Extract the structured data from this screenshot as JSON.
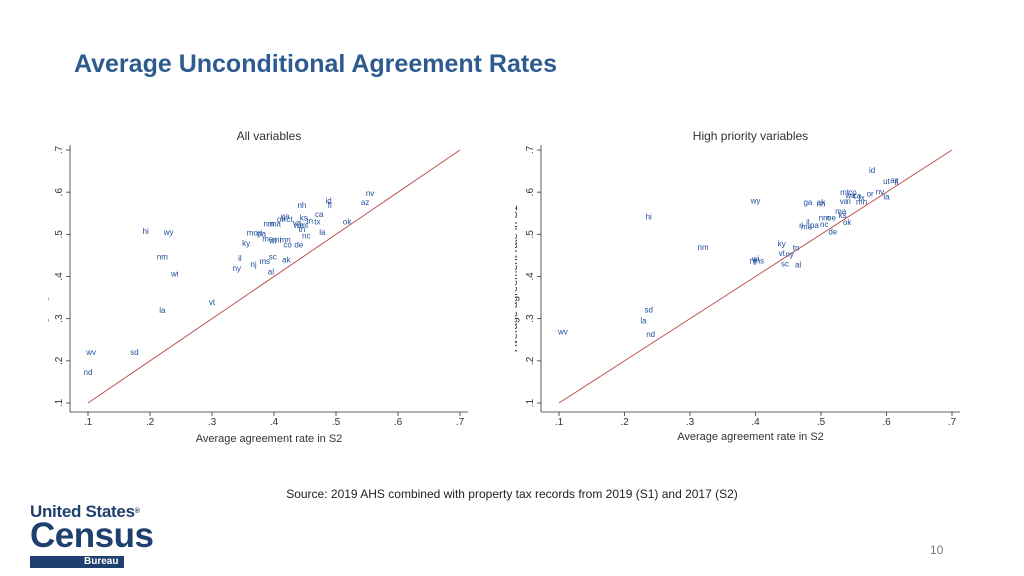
{
  "slide": {
    "title": "Average Unconditional Agreement Rates",
    "source": "Source: 2019 AHS combined with property tax records from 2019 (S1) and 2017 (S2)",
    "page_number": "10"
  },
  "logo": {
    "line1": "United States",
    "registered": "®",
    "line2": "Census",
    "line3": "Bureau"
  },
  "colors": {
    "title": "#2e5b8f",
    "marker": "#1f4e9b",
    "fit_line": "#c0504d",
    "axis": "#333333",
    "logo": "#1f3f6e"
  },
  "chart_data": [
    {
      "type": "scatter",
      "title": "All variables",
      "xlabel": "Average agreement rate in S2",
      "ylabel": "Average agreement rate in S1",
      "xlim": [
        0.1,
        0.7
      ],
      "ylim": [
        0.1,
        0.7
      ],
      "xticks": [
        ".1",
        ".2",
        ".3",
        ".4",
        ".5",
        ".6",
        ".7"
      ],
      "yticks": [
        ".1",
        ".2",
        ".3",
        ".4",
        ".5",
        ".6",
        ".7"
      ],
      "reference_line": [
        [
          0.1,
          0.1
        ],
        [
          0.7,
          0.7
        ]
      ],
      "points": [
        {
          "label": "nv",
          "x": 0.555,
          "y": 0.596
        },
        {
          "label": "id",
          "x": 0.488,
          "y": 0.578
        },
        {
          "label": "az",
          "x": 0.547,
          "y": 0.574
        },
        {
          "label": "nh",
          "x": 0.445,
          "y": 0.567
        },
        {
          "label": "fl",
          "x": 0.49,
          "y": 0.567
        },
        {
          "label": "ca",
          "x": 0.473,
          "y": 0.546
        },
        {
          "label": "ga",
          "x": 0.418,
          "y": 0.541
        },
        {
          "label": "ks",
          "x": 0.448,
          "y": 0.538
        },
        {
          "label": "oh",
          "x": 0.412,
          "y": 0.534
        },
        {
          "label": "ct",
          "x": 0.425,
          "y": 0.534
        },
        {
          "label": "in",
          "x": 0.458,
          "y": 0.531
        },
        {
          "label": "tx",
          "x": 0.47,
          "y": 0.528
        },
        {
          "label": "ok",
          "x": 0.518,
          "y": 0.528
        },
        {
          "label": "va",
          "x": 0.437,
          "y": 0.526
        },
        {
          "label": "nm",
          "x": 0.392,
          "y": 0.523
        },
        {
          "label": "ma",
          "x": 0.402,
          "y": 0.523
        },
        {
          "label": "wa",
          "x": 0.44,
          "y": 0.52
        },
        {
          "label": "mt",
          "x": 0.448,
          "y": 0.52
        },
        {
          "label": "tn",
          "x": 0.445,
          "y": 0.51
        },
        {
          "label": "hi",
          "x": 0.193,
          "y": 0.506
        },
        {
          "label": "la",
          "x": 0.478,
          "y": 0.504
        },
        {
          "label": "wy",
          "x": 0.23,
          "y": 0.503
        },
        {
          "label": "mo",
          "x": 0.365,
          "y": 0.502
        },
        {
          "label": "ri",
          "x": 0.378,
          "y": 0.502
        },
        {
          "label": "pa",
          "x": 0.38,
          "y": 0.5
        },
        {
          "label": "nc",
          "x": 0.452,
          "y": 0.495
        },
        {
          "label": "me",
          "x": 0.39,
          "y": 0.488
        },
        {
          "label": "mi",
          "x": 0.405,
          "y": 0.486
        },
        {
          "label": "mn",
          "x": 0.418,
          "y": 0.486
        },
        {
          "label": "wi",
          "x": 0.398,
          "y": 0.483
        },
        {
          "label": "co",
          "x": 0.422,
          "y": 0.474
        },
        {
          "label": "de",
          "x": 0.44,
          "y": 0.474
        },
        {
          "label": "ky",
          "x": 0.355,
          "y": 0.477
        },
        {
          "label": "sc",
          "x": 0.398,
          "y": 0.445
        },
        {
          "label": "ak",
          "x": 0.42,
          "y": 0.438
        },
        {
          "label": "nm",
          "x": 0.22,
          "y": 0.445
        },
        {
          "label": "il",
          "x": 0.345,
          "y": 0.442
        },
        {
          "label": "ms",
          "x": 0.385,
          "y": 0.435
        },
        {
          "label": "nj",
          "x": 0.367,
          "y": 0.428
        },
        {
          "label": "ny",
          "x": 0.34,
          "y": 0.418
        },
        {
          "label": "al",
          "x": 0.395,
          "y": 0.41
        },
        {
          "label": "wi",
          "x": 0.24,
          "y": 0.405
        },
        {
          "label": "vt",
          "x": 0.3,
          "y": 0.338
        },
        {
          "label": "la",
          "x": 0.22,
          "y": 0.318
        },
        {
          "label": "wv",
          "x": 0.105,
          "y": 0.219
        },
        {
          "label": "sd",
          "x": 0.175,
          "y": 0.219
        },
        {
          "label": "nd",
          "x": 0.1,
          "y": 0.171
        }
      ]
    },
    {
      "type": "scatter",
      "title": "High priority variables",
      "xlabel": "Average agreement rate in S2",
      "ylabel": "Average agreement rate in S1",
      "xlim": [
        0.1,
        0.7
      ],
      "ylim": [
        0.1,
        0.7
      ],
      "xticks": [
        ".1",
        ".2",
        ".3",
        ".4",
        ".5",
        ".6",
        ".7"
      ],
      "yticks": [
        ".1",
        ".2",
        ".3",
        ".4",
        ".5",
        ".6",
        ".7"
      ],
      "reference_line": [
        [
          0.1,
          0.1
        ],
        [
          0.7,
          0.7
        ]
      ],
      "points": [
        {
          "label": "id",
          "x": 0.578,
          "y": 0.65
        },
        {
          "label": "ut",
          "x": 0.6,
          "y": 0.624
        },
        {
          "label": "az",
          "x": 0.612,
          "y": 0.627
        },
        {
          "label": "fl",
          "x": 0.615,
          "y": 0.622
        },
        {
          "label": "nv",
          "x": 0.59,
          "y": 0.6
        },
        {
          "label": "mt",
          "x": 0.536,
          "y": 0.598
        },
        {
          "label": "co",
          "x": 0.548,
          "y": 0.598
        },
        {
          "label": "or",
          "x": 0.575,
          "y": 0.595
        },
        {
          "label": "wa",
          "x": 0.545,
          "y": 0.591
        },
        {
          "label": "ca",
          "x": 0.555,
          "y": 0.59
        },
        {
          "label": "tx",
          "x": 0.562,
          "y": 0.585
        },
        {
          "label": "la",
          "x": 0.6,
          "y": 0.588
        },
        {
          "label": "wy",
          "x": 0.4,
          "y": 0.578
        },
        {
          "label": "ga",
          "x": 0.48,
          "y": 0.574
        },
        {
          "label": "ak",
          "x": 0.5,
          "y": 0.575
        },
        {
          "label": "nh",
          "x": 0.5,
          "y": 0.571
        },
        {
          "label": "va",
          "x": 0.535,
          "y": 0.577
        },
        {
          "label": "ri",
          "x": 0.542,
          "y": 0.577
        },
        {
          "label": "mn",
          "x": 0.562,
          "y": 0.576
        },
        {
          "label": "ma",
          "x": 0.53,
          "y": 0.553
        },
        {
          "label": "ks",
          "x": 0.533,
          "y": 0.544
        },
        {
          "label": "nm",
          "x": 0.505,
          "y": 0.538
        },
        {
          "label": "oe",
          "x": 0.516,
          "y": 0.538
        },
        {
          "label": "ok",
          "x": 0.54,
          "y": 0.527
        },
        {
          "label": "hi",
          "x": 0.237,
          "y": 0.54
        },
        {
          "label": "il",
          "x": 0.48,
          "y": 0.527
        },
        {
          "label": "me",
          "x": 0.478,
          "y": 0.516
        },
        {
          "label": "pa",
          "x": 0.49,
          "y": 0.52
        },
        {
          "label": "nc",
          "x": 0.505,
          "y": 0.522
        },
        {
          "label": "ri",
          "x": 0.47,
          "y": 0.52
        },
        {
          "label": "de",
          "x": 0.518,
          "y": 0.505
        },
        {
          "label": "ky",
          "x": 0.44,
          "y": 0.476
        },
        {
          "label": "tn",
          "x": 0.462,
          "y": 0.467
        },
        {
          "label": "nm",
          "x": 0.32,
          "y": 0.468
        },
        {
          "label": "vt",
          "x": 0.44,
          "y": 0.454
        },
        {
          "label": "ny",
          "x": 0.452,
          "y": 0.451
        },
        {
          "label": "wi",
          "x": 0.4,
          "y": 0.44
        },
        {
          "label": "nj",
          "x": 0.396,
          "y": 0.436
        },
        {
          "label": "ms",
          "x": 0.405,
          "y": 0.436
        },
        {
          "label": "sc",
          "x": 0.445,
          "y": 0.429
        },
        {
          "label": "al",
          "x": 0.465,
          "y": 0.426
        },
        {
          "label": "sd",
          "x": 0.237,
          "y": 0.32
        },
        {
          "label": "la",
          "x": 0.229,
          "y": 0.293
        },
        {
          "label": "wv",
          "x": 0.106,
          "y": 0.268
        },
        {
          "label": "nd",
          "x": 0.24,
          "y": 0.262
        }
      ]
    }
  ]
}
